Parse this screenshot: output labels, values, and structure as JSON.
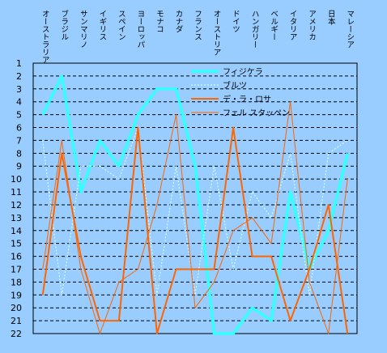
{
  "chart_data": {
    "type": "line",
    "categories": [
      "オーストラリア",
      "ブラジル",
      "サンマリノ",
      "イギリス",
      "スペイン",
      "ヨーロッパ",
      "モナコ",
      "カナダ",
      "フランス",
      "オーストリア",
      "ドイツ",
      "ハンガリー",
      "ベルギー",
      "イタリア",
      "アメリカ",
      "日本",
      "マレーシア"
    ],
    "ylim": [
      1,
      22
    ],
    "y_reversed": true,
    "yticks": [
      1,
      2,
      3,
      4,
      5,
      6,
      7,
      8,
      9,
      10,
      11,
      12,
      13,
      14,
      15,
      16,
      17,
      18,
      19,
      20,
      21,
      22
    ],
    "grid": "horizontal dashed",
    "legend_position": "top-right",
    "series": [
      {
        "name": "フィジケラ",
        "color": "#33ffff",
        "style": "thick",
        "values": [
          5,
          2,
          11,
          7,
          9,
          5,
          3,
          3,
          9,
          22,
          22,
          20,
          21,
          11,
          17,
          14,
          8
        ]
      },
      {
        "name": "ブルツ",
        "color": "#ccffff",
        "style": "dotted",
        "values": [
          7,
          19,
          9,
          9,
          10,
          6,
          19,
          9,
          19,
          9,
          17,
          11,
          13,
          8,
          19,
          8,
          7
        ]
      },
      {
        "name": "デ・ラ・ロサ",
        "color": "#ff6600",
        "style": "solid",
        "values": [
          19,
          8,
          16,
          21,
          21,
          6,
          22,
          17,
          17,
          17,
          6,
          16,
          16,
          21,
          17,
          12,
          22
        ]
      },
      {
        "name": "フェル スタッペン",
        "color": "#ff6600",
        "style": "thin",
        "values": [
          17,
          7,
          17,
          22,
          18,
          17,
          12,
          5,
          20,
          18,
          14,
          13,
          15,
          4,
          18,
          22,
          10
        ]
      }
    ]
  }
}
